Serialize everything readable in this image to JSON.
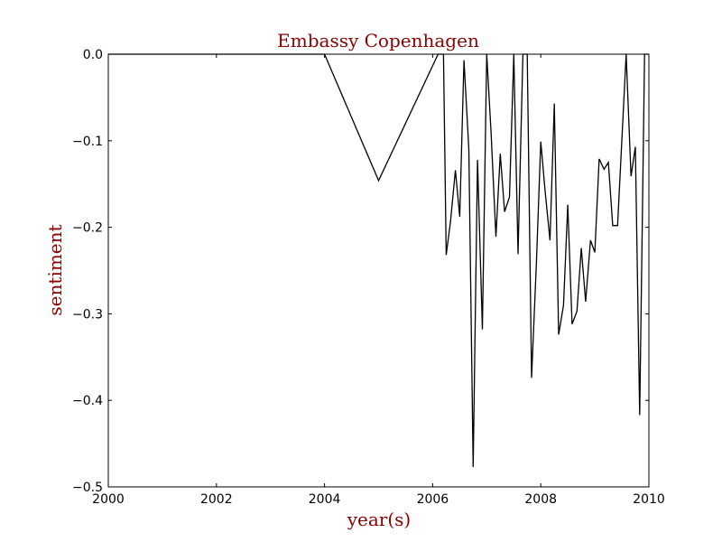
{
  "chart_data": {
    "type": "line",
    "title": "Embassy Copenhagen",
    "xlabel": "year(s)",
    "ylabel": "sentiment",
    "xlim": [
      2000,
      2010
    ],
    "ylim": [
      -0.5,
      0.0
    ],
    "xticks": [
      2000,
      2002,
      2004,
      2006,
      2008,
      2010
    ],
    "yticks": [
      0.0,
      -0.1,
      -0.2,
      -0.3,
      -0.4,
      -0.5
    ],
    "xtick_labels": [
      "2000",
      "2002",
      "2004",
      "2006",
      "2008",
      "2010"
    ],
    "ytick_labels": [
      "0.0",
      "−0.1",
      "−0.2",
      "−0.3",
      "−0.4",
      "−0.5"
    ],
    "grid": false,
    "line_color": "#000000",
    "text_color": "#8b0000",
    "series": [
      {
        "x": [
          2000.0,
          2004.0,
          2005.0,
          2006.1,
          2006.2,
          2006.25,
          2006.33,
          2006.42,
          2006.5,
          2006.58,
          2006.67,
          2006.75,
          2006.83,
          2006.92,
          2007.0,
          2007.08,
          2007.17,
          2007.25,
          2007.33,
          2007.42,
          2007.5,
          2007.58,
          2007.67,
          2007.75,
          2007.83,
          2007.92,
          2008.0,
          2008.08,
          2008.17,
          2008.25,
          2008.33,
          2008.42,
          2008.5,
          2008.58,
          2008.67,
          2008.75,
          2008.83,
          2008.92,
          2009.0,
          2009.08,
          2009.17,
          2009.25,
          2009.33,
          2009.42,
          2009.5,
          2009.58,
          2009.67,
          2009.75,
          2009.83,
          2009.92,
          2010.0
        ],
        "y": [
          0.0,
          0.0,
          -0.146,
          0.0,
          0.0,
          -0.232,
          -0.193,
          -0.134,
          -0.188,
          -0.007,
          -0.11,
          -0.477,
          -0.122,
          -0.318,
          0.0,
          -0.09,
          -0.211,
          -0.115,
          -0.182,
          -0.165,
          0.0,
          -0.231,
          0.0,
          0.0,
          -0.374,
          -0.24,
          -0.101,
          -0.158,
          -0.215,
          -0.057,
          -0.324,
          -0.29,
          -0.174,
          -0.312,
          -0.297,
          -0.224,
          -0.286,
          -0.215,
          -0.229,
          -0.121,
          -0.133,
          -0.125,
          -0.198,
          -0.198,
          -0.1,
          0.0,
          -0.141,
          -0.107,
          -0.417,
          0.0,
          0.0
        ]
      }
    ]
  }
}
